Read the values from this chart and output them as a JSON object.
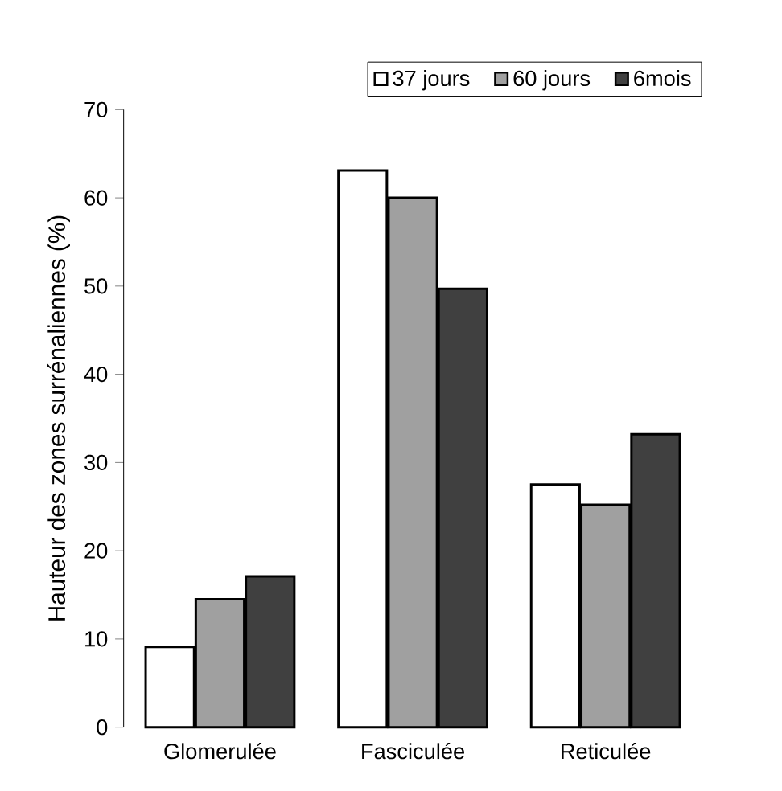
{
  "chart_data": {
    "type": "bar",
    "ylabel": "Hauteur des zones surrénaliennes (%)",
    "categories": [
      "Glomerulée",
      "Fasciculée",
      "Reticulée"
    ],
    "series": [
      {
        "name": "37 jours",
        "color": "#ffffff",
        "values": [
          9.1,
          63.1,
          27.5
        ]
      },
      {
        "name": "60 jours",
        "color": "#a0a0a0",
        "values": [
          14.5,
          60.0,
          25.2
        ]
      },
      {
        "name": "6mois",
        "color": "#404040",
        "values": [
          17.1,
          49.7,
          33.2
        ]
      }
    ],
    "ylim": [
      0,
      70
    ],
    "yticks": [
      0,
      10,
      20,
      30,
      40,
      50,
      60,
      70
    ],
    "grid": false,
    "legend": "top right"
  }
}
